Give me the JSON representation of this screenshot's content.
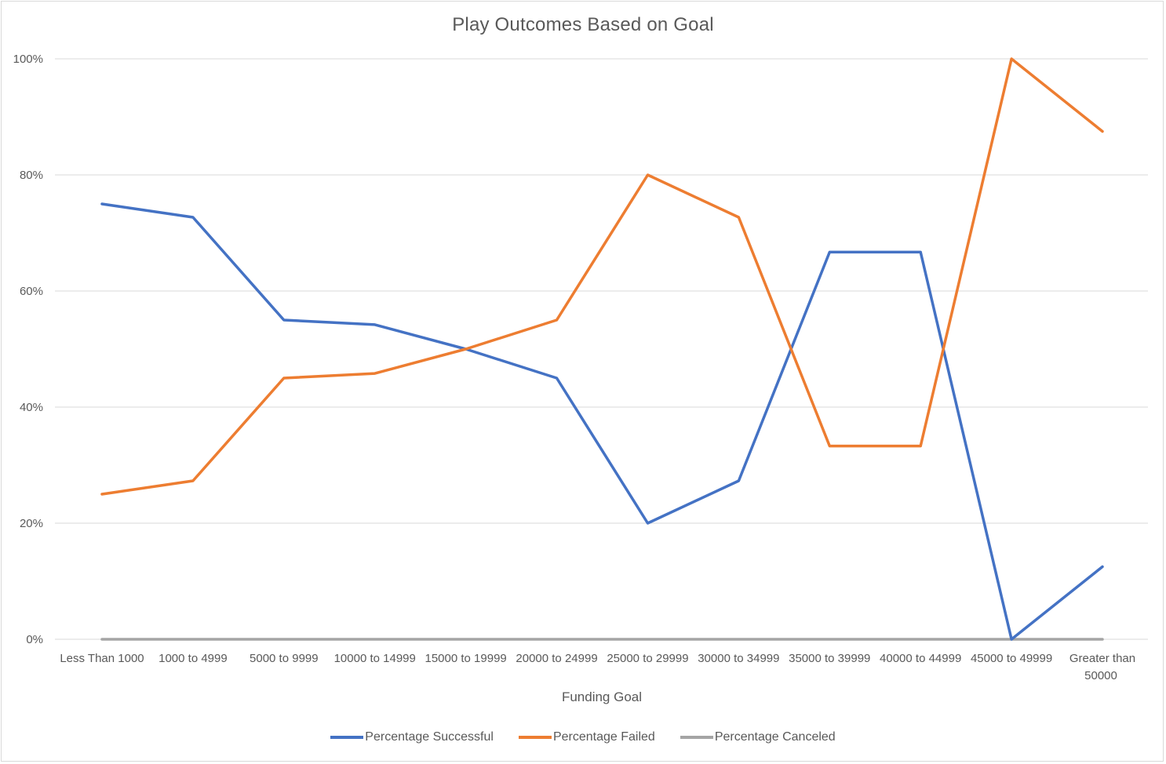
{
  "chart_data": {
    "type": "line",
    "title": "Play Outcomes Based on Goal",
    "xlabel": "Funding Goal",
    "ylabel": "",
    "ylim": [
      0,
      1
    ],
    "y_ticks": [
      "0%",
      "20%",
      "40%",
      "60%",
      "80%",
      "100%"
    ],
    "y_tick_values": [
      0,
      0.2,
      0.4,
      0.6,
      0.8,
      1.0
    ],
    "grid": true,
    "legend_position": "bottom",
    "categories": [
      "Less Than 1000",
      "1000 to 4999",
      "5000 to 9999",
      "10000 to 14999",
      "15000 to 19999",
      "20000 to 24999",
      "25000 to 29999",
      "30000 to 34999",
      "35000 to 39999",
      "40000 to 44999",
      "45000 to 49999",
      "Greater than 50000"
    ],
    "series": [
      {
        "name": "Percentage Successful",
        "color": "#4472c4",
        "values": [
          0.75,
          0.727,
          0.55,
          0.542,
          0.5,
          0.45,
          0.2,
          0.273,
          0.667,
          0.667,
          0.0,
          0.125
        ]
      },
      {
        "name": "Percentage Failed",
        "color": "#ed7d31",
        "values": [
          0.25,
          0.273,
          0.45,
          0.458,
          0.5,
          0.55,
          0.8,
          0.727,
          0.333,
          0.333,
          1.0,
          0.875
        ]
      },
      {
        "name": "Percentage Canceled",
        "color": "#a5a5a5",
        "values": [
          0,
          0,
          0,
          0,
          0,
          0,
          0,
          0,
          0,
          0,
          0,
          0
        ]
      }
    ]
  }
}
